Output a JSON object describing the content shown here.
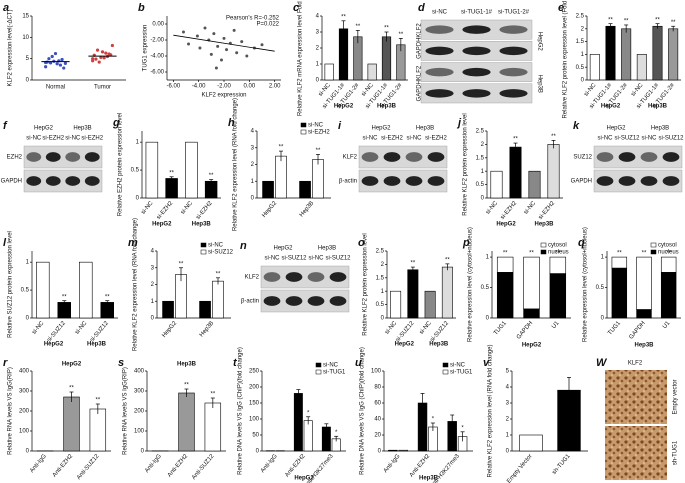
{
  "chart_data": [
    {
      "type": "strip",
      "panel": "a",
      "ylabel": "KLF2 expression level(-ΔCT)",
      "categories": [
        "Normal",
        "Tumor"
      ],
      "values": [
        [
          3.1,
          3.8,
          4.2,
          4.5,
          5.0,
          3.5,
          4.0,
          4.8,
          5.5,
          2.8,
          4.4,
          3.9,
          6.2,
          4.1
        ],
        [
          4.5,
          5.2,
          5.8,
          6.3,
          4.9,
          5.5,
          7.0,
          6.1,
          4.2,
          5.9,
          5.3,
          8.1,
          6.6,
          5.0
        ]
      ],
      "means": [
        4.3,
        5.6
      ],
      "colors": [
        "#3a4fc1",
        "#d04040"
      ],
      "ylim": [
        0,
        15
      ],
      "yticks": [
        0,
        5,
        10,
        15
      ]
    },
    {
      "type": "scatter",
      "panel": "b",
      "xlabel": "KLF2 expression",
      "ylabel": "TUG1 expression",
      "annotations": [
        "Pearson's R=-0.252",
        "P=0.022"
      ],
      "x": [
        -5.2,
        -4.8,
        -4.1,
        -3.9,
        -3.5,
        -3.2,
        -3.0,
        -2.8,
        -2.5,
        -2.2,
        -2.0,
        -1.8,
        -1.5,
        -1.2,
        -1.0,
        -0.6,
        -0.2,
        0.4,
        1.0,
        -2.6
      ],
      "y": [
        -1.0,
        -2.5,
        -1.5,
        -3.0,
        -0.5,
        -2.0,
        -3.8,
        -1.2,
        -2.8,
        -4.5,
        -1.8,
        -3.2,
        -2.4,
        -0.8,
        -3.6,
        -2.2,
        -4.0,
        -3.0,
        -2.6,
        -5.5
      ],
      "trendline": {
        "x": [
          -6,
          2
        ],
        "y": [
          -1.4,
          -3.4
        ]
      },
      "color": "#555",
      "xlim": [
        -6.5,
        2.5
      ],
      "xticks": [
        {
          "value": -6,
          "label": "-6.00"
        },
        {
          "value": -4,
          "label": "-4.00"
        },
        {
          "value": -2,
          "label": "-2.00"
        },
        {
          "value": 0,
          "label": "0.00"
        },
        {
          "value": 2,
          "label": "2.00"
        }
      ],
      "ylim": [
        -7,
        1
      ],
      "yticks": [
        {
          "value": -6,
          "label": "-6.00"
        },
        {
          "value": -4,
          "label": "-4.00"
        },
        {
          "value": -2,
          "label": "-2.00"
        },
        {
          "value": 0,
          "label": "0.00"
        }
      ]
    },
    {
      "type": "bar",
      "panel": "c",
      "ylabel": "Relative KLF2 mRNA expression level Fold change",
      "categories": [
        "si-NC",
        "si-TUG1-1#",
        "si-TUG1-2#",
        "si-NC",
        "si-TUG1-1#",
        "si-TUG1-2#"
      ],
      "values": [
        1,
        3.2,
        2.7,
        1,
        2.7,
        2.2
      ],
      "errors": [
        0,
        0.5,
        0.4,
        0,
        0.3,
        0.4
      ],
      "colors": [
        "#ffffff",
        "#000000",
        "#888888",
        "#dddddd",
        "#555555",
        "#999999"
      ],
      "annotations": [
        null,
        "**",
        "**",
        null,
        "**",
        "**"
      ],
      "groups": [
        "HepG2",
        "Hep3B"
      ],
      "ylim": [
        0,
        4
      ],
      "yticks": [
        0,
        1,
        2,
        3,
        4
      ]
    },
    {
      "type": "bar",
      "panel": "e",
      "ylabel": "Relative KLF2 protein expression level (Fold change)",
      "categories": [
        "si-NC",
        "si-TUG1-1#",
        "si-TUG1-2#",
        "si-NC",
        "si-TUG1-1#",
        "si-TUG1-2#"
      ],
      "values": [
        1,
        2.1,
        2.0,
        1,
        2.1,
        2.0
      ],
      "errors": [
        0,
        0.1,
        0.15,
        0,
        0.1,
        0.1
      ],
      "colors": [
        "#ffffff",
        "#000000",
        "#888888",
        "#dddddd",
        "#555555",
        "#999999"
      ],
      "annotations": [
        null,
        "**",
        "**",
        null,
        "**",
        "**"
      ],
      "groups": [
        "HepG2",
        "Hep3B"
      ],
      "ylim": [
        0,
        2.5
      ],
      "yticks": [
        0,
        0.5,
        1,
        1.5,
        2,
        2.5
      ]
    },
    {
      "type": "bar",
      "panel": "g",
      "ylabel": "Relative EZH2 protein expression level",
      "categories": [
        "si-NC",
        "si-EZH2",
        "si-NC",
        "si-EZH2"
      ],
      "values": [
        1,
        0.35,
        1,
        0.3
      ],
      "errors": [
        0,
        0.03,
        0,
        0.03
      ],
      "colors": [
        "#ffffff",
        "#000000",
        "#ffffff",
        "#000000"
      ],
      "annotations": [
        null,
        "**",
        null,
        "**"
      ],
      "groups": [
        "HepG2",
        "Hep3B"
      ],
      "ylim": [
        0,
        1.2
      ],
      "yticks": [
        0,
        0.5,
        1
      ]
    },
    {
      "type": "bar",
      "panel": "h",
      "ylabel": "Relative KLF2 expression level (RNA fold change)",
      "categories": [
        "HepG2",
        "Hep3B"
      ],
      "series": [
        {
          "name": "si-NC",
          "color": "#000000",
          "values": [
            1,
            1
          ],
          "errors": [
            0,
            0
          ]
        },
        {
          "name": "si-EZH2",
          "color": "#ffffff",
          "values": [
            2.5,
            2.3
          ],
          "errors": [
            0.3,
            0.3
          ],
          "annotations": [
            "**",
            "**"
          ]
        }
      ],
      "ylim": [
        0,
        4
      ],
      "yticks": [
        0,
        1,
        2,
        3,
        4
      ]
    },
    {
      "type": "bar",
      "panel": "j",
      "ylabel": "Relative KLF2 protein expression level",
      "categories": [
        "si-NC",
        "si-EZH2",
        "si-NC",
        "si-EZH2"
      ],
      "values": [
        1,
        1.9,
        1,
        2.0
      ],
      "errors": [
        0,
        0.15,
        0,
        0.15
      ],
      "colors": [
        "#ffffff",
        "#000000",
        "#888888",
        "#dddddd"
      ],
      "annotations": [
        null,
        "**",
        null,
        "**"
      ],
      "groups": [
        "HepG2",
        "Hep3B"
      ],
      "ylim": [
        0,
        2.5
      ],
      "yticks": [
        0,
        0.5,
        1,
        1.5,
        2,
        2.5
      ]
    },
    {
      "type": "bar",
      "panel": "l",
      "ylabel": "Relative SUZ12 protein expression level",
      "categories": [
        "si-NC",
        "si-SUZ12",
        "si-NC",
        "si-SUZ12"
      ],
      "values": [
        1,
        0.28,
        1,
        0.28
      ],
      "errors": [
        0,
        0.03,
        0,
        0.03
      ],
      "colors": [
        "#ffffff",
        "#000000",
        "#ffffff",
        "#000000"
      ],
      "annotations": [
        null,
        "**",
        null,
        "**"
      ],
      "groups": [
        "HepG2",
        "Hep3B"
      ],
      "ylim": [
        0,
        1.2
      ],
      "yticks": [
        0,
        0.5,
        1
      ]
    },
    {
      "type": "bar",
      "panel": "m",
      "ylabel": "Relative KLF2 expression level (RNA fold change)",
      "categories": [
        "HepG2",
        "Hep3B"
      ],
      "series": [
        {
          "name": "si-NC",
          "color": "#000000",
          "values": [
            1,
            1
          ],
          "errors": [
            0,
            0
          ]
        },
        {
          "name": "si-SUZ12",
          "color": "#ffffff",
          "values": [
            2.6,
            2.2
          ],
          "errors": [
            0.4,
            0.2
          ],
          "annotations": [
            "**",
            "**"
          ]
        }
      ],
      "ylim": [
        0,
        4
      ],
      "yticks": [
        0,
        1,
        2,
        3,
        4
      ]
    },
    {
      "type": "bar",
      "panel": "o",
      "ylabel": "Relative KLF2 protein expression level",
      "categories": [
        "si-NC",
        "si-SUZ12",
        "si-NC",
        "si-SUZ12"
      ],
      "values": [
        1,
        1.8,
        1,
        1.9
      ],
      "errors": [
        0,
        0.1,
        0,
        0.12
      ],
      "colors": [
        "#ffffff",
        "#000000",
        "#888888",
        "#dddddd"
      ],
      "annotations": [
        null,
        "**",
        null,
        "**"
      ],
      "groups": [
        "HepG2",
        "Hep3B"
      ],
      "ylim": [
        0,
        2.5
      ],
      "yticks": [
        0,
        0.5,
        1,
        1.5,
        2,
        2.5
      ]
    },
    {
      "type": "stacked_bar",
      "panel": "p",
      "ylabel": "Relative expression level (cytosol+nucleus)",
      "xlabel": "HepG2",
      "categories": [
        "TUG1",
        "GAPDH",
        "U1"
      ],
      "series": [
        {
          "name": "cytosol",
          "color": "#ffffff",
          "values": [
            0.25,
            0.85,
            0.27
          ]
        },
        {
          "name": "nucleus",
          "color": "#000000",
          "values": [
            0.75,
            0.15,
            0.73
          ]
        }
      ],
      "annotations": [
        "**",
        "**",
        "**"
      ],
      "ylim": [
        0,
        1.1
      ],
      "yticks": [
        0,
        0.5,
        1
      ]
    },
    {
      "type": "stacked_bar",
      "panel": "q",
      "ylabel": "Relative expression level (cytosol+nucleus)",
      "xlabel": "Hep3B",
      "categories": [
        "TUG1",
        "GAPDH",
        "U1"
      ],
      "series": [
        {
          "name": "cytosol",
          "color": "#ffffff",
          "values": [
            0.18,
            0.86,
            0.25
          ]
        },
        {
          "name": "nucleus",
          "color": "#000000",
          "values": [
            0.82,
            0.14,
            0.75
          ]
        }
      ],
      "annotations": [
        "**",
        "**",
        "**"
      ],
      "ylim": [
        0,
        1.1
      ],
      "yticks": [
        0,
        0.5,
        1
      ]
    },
    {
      "type": "bar",
      "panel": "r",
      "title": "HepG2",
      "ylabel": "Relative RNA levels VS IgG(RIP)",
      "categories": [
        "Anti-IgG",
        "Anti-EZH2",
        "Anti-SUZ12"
      ],
      "values": [
        1,
        270,
        210
      ],
      "errors": [
        0,
        25,
        25
      ],
      "colors": [
        "#ffffff",
        "#999999",
        "#ffffff"
      ],
      "annotations": [
        null,
        "**",
        "**"
      ],
      "ylim": [
        0,
        400
      ],
      "yticks": [
        0,
        100,
        200,
        300,
        400
      ]
    },
    {
      "type": "bar",
      "panel": "s",
      "title": "Hep3B",
      "ylabel": "Relative RNA levels VS IgG(RIP)",
      "categories": [
        "Anti-IgG",
        "Anti-EZH2",
        "Anti-SUZ12"
      ],
      "values": [
        1,
        290,
        240
      ],
      "errors": [
        0,
        20,
        25
      ],
      "colors": [
        "#ffffff",
        "#999999",
        "#ffffff"
      ],
      "annotations": [
        null,
        "**",
        "**"
      ],
      "ylim": [
        0,
        400
      ],
      "yticks": [
        0,
        100,
        200,
        300,
        400
      ]
    },
    {
      "type": "bar",
      "panel": "t",
      "xlabel": "HepG2",
      "ylabel": "Relative DNA levels VS IgG (ChIP)(fold change)",
      "categories": [
        "Anti-IgG",
        "Anti-EZH2",
        "Anti-H3K27me3"
      ],
      "series": [
        {
          "name": "si-NC",
          "color": "#000000",
          "values": [
            1,
            180,
            75
          ],
          "errors": [
            0,
            12,
            10
          ]
        },
        {
          "name": "si-TUG1",
          "color": "#ffffff",
          "values": [
            1,
            95,
            38
          ],
          "errors": [
            0,
            12,
            8
          ],
          "annotations": [
            null,
            "*",
            "*"
          ]
        }
      ],
      "ylim": [
        0,
        250
      ],
      "yticks": [
        0,
        50,
        100,
        150,
        200,
        250
      ]
    },
    {
      "type": "bar",
      "panel": "u",
      "xlabel": "Hep3B",
      "ylabel": "Relative DNA levels VS IgG (ChIP)(fold change)",
      "categories": [
        "Anti-IgG",
        "Anti-EZH2",
        "Anti-H3K27me3"
      ],
      "series": [
        {
          "name": "si-NC",
          "color": "#000000",
          "values": [
            1,
            60,
            37
          ],
          "errors": [
            0,
            12,
            8
          ]
        },
        {
          "name": "si-TUG1",
          "color": "#ffffff",
          "values": [
            1,
            30,
            18
          ],
          "errors": [
            0,
            5,
            6
          ],
          "annotations": [
            null,
            "*",
            "*"
          ]
        }
      ],
      "ylim": [
        0,
        100
      ],
      "yticks": [
        0,
        20,
        40,
        60,
        80,
        100
      ]
    },
    {
      "type": "bar",
      "panel": "v",
      "ylabel": "Relative KLF2 expression level (RNA fold change)",
      "categories": [
        "Empty Vector",
        "sh-TUG1"
      ],
      "values": [
        1,
        3.8
      ],
      "errors": [
        0,
        0.8
      ],
      "colors": [
        "#ffffff",
        "#000000"
      ],
      "annotations": [
        null,
        null
      ],
      "ylim": [
        0,
        5
      ],
      "yticks": [
        0,
        1,
        2,
        3,
        4,
        5
      ]
    }
  ],
  "blots": [
    {
      "panel": "d",
      "columns": [
        "si-NC",
        "si-TUG1-1#",
        "si-TUG1-2#"
      ],
      "rows": [
        "KLF2",
        "GAPDH",
        "KLF2",
        "GAPDH"
      ],
      "cell_lines": [
        "HepG2",
        "Hep3B"
      ]
    },
    {
      "panel": "f",
      "groups": [
        "HepG2",
        "Hep3B"
      ],
      "columns": [
        "si-NC",
        "si-EZH2",
        "si-NC",
        "si-EZH2"
      ],
      "rows": [
        "EZH2",
        "GAPDH"
      ]
    },
    {
      "panel": "i",
      "groups": [
        "HepG2",
        "Hep3B"
      ],
      "columns": [
        "si-NC",
        "si-EZH2",
        "si-NC",
        "si-EZH2"
      ],
      "rows": [
        "KLF2",
        "β-actin"
      ]
    },
    {
      "panel": "k",
      "groups": [
        "HepG2",
        "Hep3B"
      ],
      "columns": [
        "si-NC",
        "si-SUZ12",
        "si-NC",
        "si-SUZ12"
      ],
      "rows": [
        "SUZ12",
        "GAPDH"
      ]
    },
    {
      "panel": "n",
      "groups": [
        "HepG2",
        "Hep3B"
      ],
      "columns": [
        "si-NC",
        "si-SUZ12",
        "si-NC",
        "si-SUZ12"
      ],
      "rows": [
        "KLF2",
        "β-actin"
      ]
    }
  ],
  "ihc": {
    "panel": "W",
    "title": "KLF2",
    "rows": [
      "Empty vector",
      "sh-TUG1"
    ]
  }
}
